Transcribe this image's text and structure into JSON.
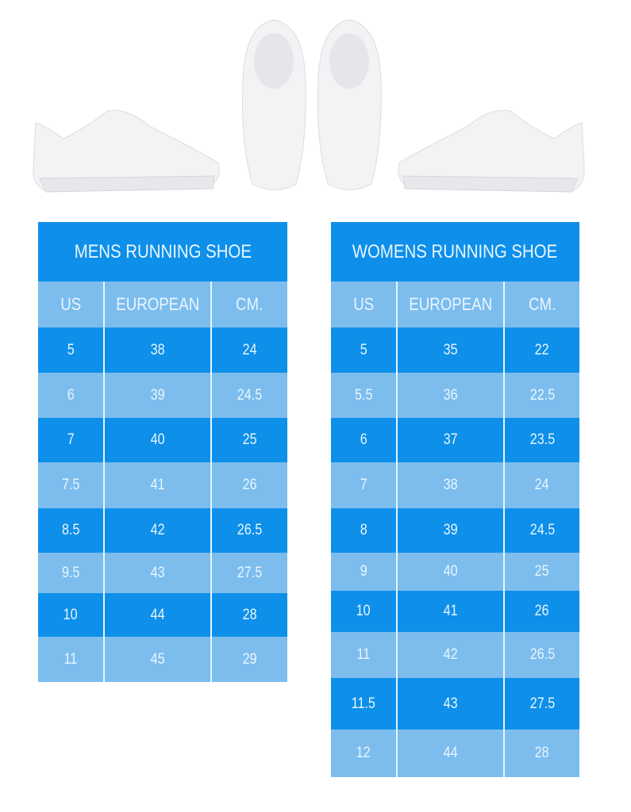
{
  "colors": {
    "dark_row": "#0d8fea",
    "light_row": "#7cbdee",
    "text": "#eaf5ff"
  },
  "images": [
    "sneaker-side-left",
    "sneaker-top-pair",
    "sneaker-side-right"
  ],
  "mens": {
    "title": "MENS RUNNING SHOE",
    "headers": [
      "US",
      "EUROPEAN",
      "CM."
    ],
    "rows": [
      [
        "5",
        "38",
        "24"
      ],
      [
        "6",
        "39",
        "24.5"
      ],
      [
        "7",
        "40",
        "25"
      ],
      [
        "7.5",
        "41",
        "26"
      ],
      [
        "8.5",
        "42",
        "26.5"
      ],
      [
        "9.5",
        "43",
        "27.5"
      ],
      [
        "10",
        "44",
        "28"
      ],
      [
        "11",
        "45",
        "29"
      ]
    ]
  },
  "womens": {
    "title": "WOMENS RUNNING SHOE",
    "headers": [
      "US",
      "EUROPEAN",
      "CM."
    ],
    "rows": [
      [
        "5",
        "35",
        "22"
      ],
      [
        "5.5",
        "36",
        "22.5"
      ],
      [
        "6",
        "37",
        "23.5"
      ],
      [
        "7",
        "38",
        "24"
      ],
      [
        "8",
        "39",
        "24.5"
      ],
      [
        "9",
        "40",
        "25"
      ],
      [
        "10",
        "41",
        "26"
      ],
      [
        "11",
        "42",
        "26.5"
      ],
      [
        "11.5",
        "43",
        "27.5"
      ],
      [
        "12",
        "44",
        "28"
      ]
    ]
  }
}
